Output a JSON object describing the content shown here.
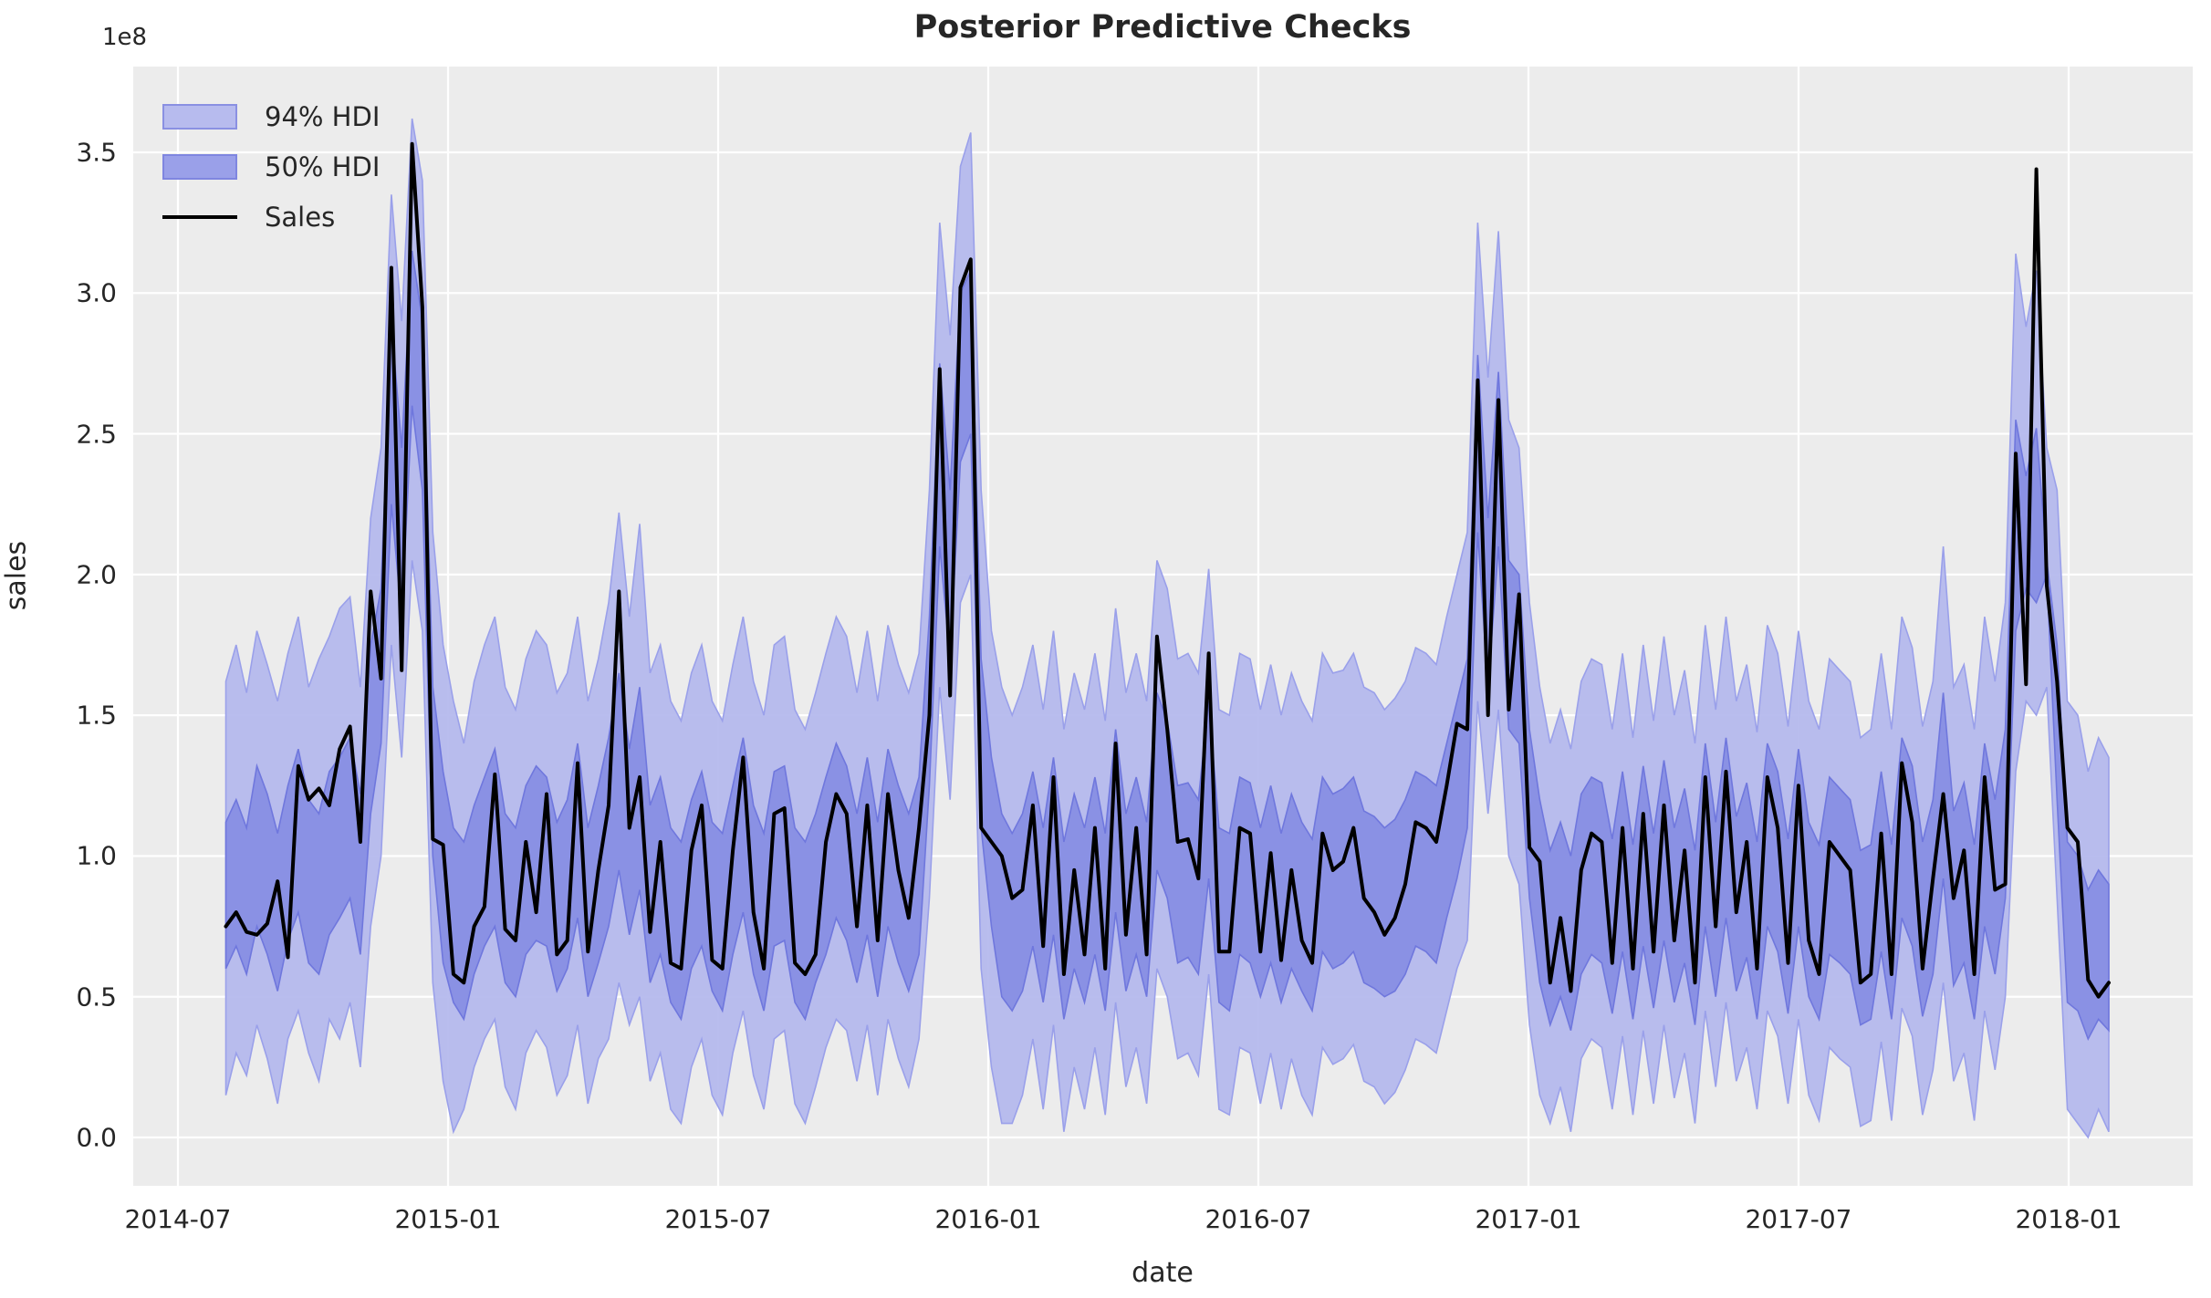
{
  "figure": {
    "title": "Posterior Predictive Checks",
    "offset_label": "1e8"
  },
  "axes": {
    "x_label": "date",
    "y_label": "sales",
    "x_ticks": [
      {
        "label": "2014-07",
        "month": 0
      },
      {
        "label": "2015-01",
        "month": 6
      },
      {
        "label": "2015-07",
        "month": 12
      },
      {
        "label": "2016-01",
        "month": 18
      },
      {
        "label": "2016-07",
        "month": 24
      },
      {
        "label": "2017-01",
        "month": 30
      },
      {
        "label": "2017-07",
        "month": 36
      },
      {
        "label": "2018-01",
        "month": 42
      }
    ],
    "y_ticks": [
      {
        "label": "0.0",
        "value": 0.0
      },
      {
        "label": "0.5",
        "value": 0.5
      },
      {
        "label": "1.0",
        "value": 1.0
      },
      {
        "label": "1.5",
        "value": 1.5
      },
      {
        "label": "2.0",
        "value": 2.0
      },
      {
        "label": "2.5",
        "value": 2.5
      },
      {
        "label": "3.0",
        "value": 3.0
      },
      {
        "label": "3.5",
        "value": 3.5
      }
    ]
  },
  "legend": [
    {
      "label": "94% HDI",
      "type": "patch",
      "fill": "#b7bbee",
      "border": "#8a90e2"
    },
    {
      "label": "50% HDI",
      "type": "patch",
      "fill": "#9aa0e9",
      "border": "#7f86e0"
    },
    {
      "label": "Sales",
      "type": "line",
      "color": "#000000"
    }
  ],
  "colors": {
    "plot_bg": "#ececec",
    "gridline": "#ffffff",
    "hdi94_fill": "#b4b8ed",
    "hdi94_edge": "#9aa0ea",
    "hdi50_fill": "#878ee4",
    "hdi50_edge": "#6f77dd",
    "sales_line": "#000000"
  },
  "chart_data": {
    "type": "line",
    "description": "Weekly sales (black) with 94% and 50% posterior-predictive HDI bands, units of 1e8",
    "x_start": "2014-08-03",
    "x_step_days": 7,
    "y_units": "1e8",
    "ylim": [
      -0.17,
      3.8
    ],
    "grid": true,
    "legend_position": "upper left",
    "series": [
      {
        "name": "sales",
        "values": [
          0.75,
          0.8,
          0.73,
          0.72,
          0.76,
          0.91,
          0.64,
          1.32,
          1.2,
          1.24,
          1.18,
          1.38,
          1.46,
          1.05,
          1.94,
          1.63,
          3.09,
          1.66,
          3.53,
          2.95,
          1.06,
          1.04,
          0.58,
          0.55,
          0.75,
          0.82,
          1.29,
          0.74,
          0.7,
          1.05,
          0.8,
          1.22,
          0.65,
          0.7,
          1.33,
          0.66,
          0.95,
          1.18,
          1.94,
          1.1,
          1.28,
          0.73,
          1.05,
          0.62,
          0.6,
          1.02,
          1.18,
          0.63,
          0.6,
          1.02,
          1.35,
          0.8,
          0.6,
          1.15,
          1.17,
          0.62,
          0.58,
          0.65,
          1.05,
          1.22,
          1.15,
          0.75,
          1.18,
          0.7,
          1.22,
          0.95,
          0.78,
          1.1,
          1.5,
          2.73,
          1.57,
          3.02,
          3.12,
          1.1,
          1.05,
          1.0,
          0.85,
          0.88,
          1.18,
          0.68,
          1.28,
          0.58,
          0.95,
          0.65,
          1.1,
          0.6,
          1.4,
          0.72,
          1.1,
          0.65,
          1.78,
          1.45,
          1.05,
          1.06,
          0.92,
          1.72,
          0.66,
          0.66,
          1.1,
          1.08,
          0.66,
          1.01,
          0.63,
          0.95,
          0.7,
          0.62,
          1.08,
          0.95,
          0.98,
          1.1,
          0.85,
          0.8,
          0.72,
          0.78,
          0.9,
          1.12,
          1.1,
          1.05,
          1.25,
          1.47,
          1.45,
          2.69,
          1.5,
          2.62,
          1.52,
          1.93,
          1.03,
          0.98,
          0.55,
          0.78,
          0.52,
          0.95,
          1.08,
          1.05,
          0.62,
          1.1,
          0.6,
          1.15,
          0.66,
          1.18,
          0.7,
          1.02,
          0.55,
          1.28,
          0.75,
          1.3,
          0.8,
          1.05,
          0.6,
          1.28,
          1.1,
          0.62,
          1.25,
          0.7,
          0.58,
          1.05,
          1.0,
          0.95,
          0.55,
          0.58,
          1.08,
          0.58,
          1.33,
          1.12,
          0.6,
          0.92,
          1.22,
          0.85,
          1.02,
          0.58,
          1.28,
          0.88,
          0.9,
          2.43,
          1.61,
          3.44,
          1.96,
          1.62,
          1.1,
          1.05,
          0.56,
          0.5,
          0.55
        ]
      },
      {
        "name": "hdi94_hi",
        "values": [
          1.62,
          1.75,
          1.58,
          1.8,
          1.68,
          1.55,
          1.72,
          1.85,
          1.6,
          1.7,
          1.78,
          1.88,
          1.92,
          1.6,
          2.2,
          2.45,
          3.35,
          2.9,
          3.62,
          3.4,
          2.15,
          1.75,
          1.55,
          1.4,
          1.62,
          1.75,
          1.85,
          1.6,
          1.52,
          1.7,
          1.8,
          1.75,
          1.58,
          1.65,
          1.85,
          1.55,
          1.7,
          1.9,
          2.22,
          1.85,
          2.18,
          1.65,
          1.75,
          1.55,
          1.48,
          1.65,
          1.75,
          1.55,
          1.48,
          1.68,
          1.85,
          1.62,
          1.5,
          1.75,
          1.78,
          1.52,
          1.45,
          1.58,
          1.72,
          1.85,
          1.78,
          1.58,
          1.8,
          1.55,
          1.82,
          1.68,
          1.58,
          1.72,
          2.3,
          3.25,
          2.85,
          3.45,
          3.57,
          2.3,
          1.8,
          1.6,
          1.5,
          1.6,
          1.75,
          1.52,
          1.8,
          1.45,
          1.65,
          1.52,
          1.72,
          1.48,
          1.88,
          1.58,
          1.72,
          1.55,
          2.05,
          1.95,
          1.7,
          1.72,
          1.65,
          2.02,
          1.52,
          1.5,
          1.72,
          1.7,
          1.52,
          1.68,
          1.5,
          1.65,
          1.55,
          1.48,
          1.72,
          1.65,
          1.66,
          1.72,
          1.6,
          1.58,
          1.52,
          1.56,
          1.62,
          1.74,
          1.72,
          1.68,
          1.85,
          2.0,
          2.15,
          3.25,
          2.7,
          3.22,
          2.55,
          2.45,
          1.9,
          1.6,
          1.4,
          1.52,
          1.38,
          1.62,
          1.7,
          1.68,
          1.45,
          1.72,
          1.42,
          1.75,
          1.48,
          1.78,
          1.5,
          1.66,
          1.4,
          1.82,
          1.52,
          1.85,
          1.55,
          1.68,
          1.44,
          1.82,
          1.72,
          1.46,
          1.8,
          1.55,
          1.45,
          1.7,
          1.66,
          1.62,
          1.42,
          1.45,
          1.72,
          1.45,
          1.85,
          1.74,
          1.46,
          1.62,
          2.1,
          1.6,
          1.68,
          1.45,
          1.85,
          1.62,
          1.9,
          3.14,
          2.88,
          3.08,
          2.45,
          2.3,
          1.55,
          1.5,
          1.3,
          1.42,
          1.35
        ]
      },
      {
        "name": "hdi94_lo",
        "values": [
          0.15,
          0.3,
          0.22,
          0.4,
          0.28,
          0.12,
          0.35,
          0.45,
          0.3,
          0.2,
          0.42,
          0.35,
          0.48,
          0.25,
          0.75,
          1.0,
          1.75,
          1.35,
          2.05,
          1.8,
          0.55,
          0.2,
          0.02,
          0.1,
          0.25,
          0.35,
          0.42,
          0.18,
          0.1,
          0.3,
          0.38,
          0.32,
          0.15,
          0.22,
          0.4,
          0.12,
          0.28,
          0.35,
          0.55,
          0.4,
          0.5,
          0.2,
          0.3,
          0.1,
          0.05,
          0.25,
          0.35,
          0.15,
          0.08,
          0.3,
          0.45,
          0.22,
          0.1,
          0.35,
          0.38,
          0.12,
          0.05,
          0.18,
          0.32,
          0.42,
          0.38,
          0.2,
          0.4,
          0.15,
          0.42,
          0.28,
          0.18,
          0.35,
          0.85,
          1.6,
          1.2,
          1.9,
          2.0,
          0.6,
          0.25,
          0.05,
          0.05,
          0.15,
          0.35,
          0.1,
          0.4,
          0.02,
          0.25,
          0.1,
          0.32,
          0.08,
          0.48,
          0.18,
          0.32,
          0.12,
          0.6,
          0.5,
          0.28,
          0.3,
          0.22,
          0.58,
          0.1,
          0.08,
          0.32,
          0.3,
          0.12,
          0.3,
          0.1,
          0.28,
          0.15,
          0.08,
          0.32,
          0.26,
          0.28,
          0.33,
          0.2,
          0.18,
          0.12,
          0.16,
          0.24,
          0.35,
          0.33,
          0.3,
          0.45,
          0.6,
          0.7,
          1.55,
          1.15,
          1.52,
          1.0,
          0.9,
          0.4,
          0.15,
          0.05,
          0.18,
          0.02,
          0.28,
          0.35,
          0.32,
          0.1,
          0.36,
          0.08,
          0.38,
          0.12,
          0.4,
          0.14,
          0.3,
          0.05,
          0.45,
          0.18,
          0.48,
          0.2,
          0.32,
          0.1,
          0.45,
          0.36,
          0.12,
          0.42,
          0.15,
          0.06,
          0.32,
          0.28,
          0.25,
          0.04,
          0.06,
          0.34,
          0.06,
          0.46,
          0.36,
          0.08,
          0.24,
          0.55,
          0.2,
          0.3,
          0.06,
          0.45,
          0.24,
          0.5,
          1.3,
          1.55,
          1.5,
          1.6,
          0.85,
          0.1,
          0.05,
          0.0,
          0.1,
          0.02
        ]
      },
      {
        "name": "hdi50_hi",
        "values": [
          1.12,
          1.2,
          1.1,
          1.32,
          1.22,
          1.08,
          1.25,
          1.38,
          1.2,
          1.15,
          1.3,
          1.35,
          1.42,
          1.22,
          1.75,
          1.95,
          2.9,
          2.45,
          3.15,
          2.9,
          1.6,
          1.3,
          1.1,
          1.05,
          1.18,
          1.28,
          1.38,
          1.15,
          1.1,
          1.25,
          1.32,
          1.28,
          1.12,
          1.2,
          1.4,
          1.1,
          1.25,
          1.42,
          1.65,
          1.38,
          1.6,
          1.18,
          1.28,
          1.1,
          1.05,
          1.2,
          1.3,
          1.12,
          1.08,
          1.25,
          1.42,
          1.18,
          1.08,
          1.3,
          1.32,
          1.1,
          1.05,
          1.15,
          1.28,
          1.4,
          1.32,
          1.15,
          1.35,
          1.12,
          1.38,
          1.25,
          1.15,
          1.28,
          1.85,
          2.75,
          2.3,
          3.0,
          3.08,
          1.7,
          1.35,
          1.15,
          1.08,
          1.15,
          1.3,
          1.1,
          1.35,
          1.05,
          1.22,
          1.1,
          1.28,
          1.08,
          1.45,
          1.15,
          1.28,
          1.12,
          1.58,
          1.48,
          1.25,
          1.26,
          1.2,
          1.55,
          1.1,
          1.08,
          1.28,
          1.26,
          1.1,
          1.25,
          1.08,
          1.22,
          1.12,
          1.06,
          1.28,
          1.22,
          1.24,
          1.28,
          1.16,
          1.14,
          1.1,
          1.13,
          1.2,
          1.3,
          1.28,
          1.25,
          1.4,
          1.55,
          1.7,
          2.78,
          2.2,
          2.72,
          2.05,
          2.0,
          1.45,
          1.2,
          1.02,
          1.12,
          1.0,
          1.22,
          1.28,
          1.26,
          1.06,
          1.3,
          1.04,
          1.32,
          1.08,
          1.34,
          1.1,
          1.24,
          1.02,
          1.4,
          1.12,
          1.42,
          1.14,
          1.26,
          1.05,
          1.4,
          1.3,
          1.06,
          1.38,
          1.12,
          1.04,
          1.28,
          1.24,
          1.2,
          1.02,
          1.04,
          1.3,
          1.04,
          1.42,
          1.32,
          1.05,
          1.2,
          1.58,
          1.16,
          1.26,
          1.04,
          1.4,
          1.2,
          1.45,
          2.55,
          2.35,
          2.52,
          2.05,
          1.75,
          1.05,
          1.0,
          0.88,
          0.95,
          0.9
        ]
      },
      {
        "name": "hdi50_lo",
        "values": [
          0.6,
          0.68,
          0.58,
          0.75,
          0.65,
          0.52,
          0.7,
          0.8,
          0.62,
          0.58,
          0.72,
          0.78,
          0.85,
          0.65,
          1.15,
          1.4,
          2.25,
          1.85,
          2.6,
          2.3,
          1.0,
          0.62,
          0.48,
          0.42,
          0.58,
          0.68,
          0.75,
          0.55,
          0.5,
          0.65,
          0.7,
          0.68,
          0.52,
          0.6,
          0.78,
          0.5,
          0.62,
          0.75,
          0.95,
          0.72,
          0.88,
          0.55,
          0.65,
          0.48,
          0.42,
          0.6,
          0.68,
          0.52,
          0.45,
          0.65,
          0.8,
          0.58,
          0.45,
          0.68,
          0.7,
          0.48,
          0.42,
          0.55,
          0.65,
          0.78,
          0.7,
          0.55,
          0.72,
          0.5,
          0.75,
          0.62,
          0.52,
          0.65,
          1.25,
          2.1,
          1.7,
          2.4,
          2.5,
          1.1,
          0.75,
          0.5,
          0.45,
          0.52,
          0.68,
          0.48,
          0.72,
          0.42,
          0.6,
          0.48,
          0.65,
          0.45,
          0.8,
          0.52,
          0.65,
          0.5,
          0.95,
          0.85,
          0.62,
          0.64,
          0.58,
          0.92,
          0.48,
          0.45,
          0.65,
          0.62,
          0.5,
          0.62,
          0.48,
          0.6,
          0.52,
          0.45,
          0.66,
          0.6,
          0.62,
          0.66,
          0.55,
          0.53,
          0.5,
          0.52,
          0.58,
          0.68,
          0.66,
          0.62,
          0.78,
          0.92,
          1.1,
          2.15,
          1.6,
          2.1,
          1.45,
          1.4,
          0.85,
          0.55,
          0.4,
          0.5,
          0.38,
          0.58,
          0.65,
          0.62,
          0.44,
          0.66,
          0.42,
          0.68,
          0.46,
          0.7,
          0.48,
          0.62,
          0.4,
          0.75,
          0.5,
          0.78,
          0.52,
          0.64,
          0.42,
          0.75,
          0.66,
          0.44,
          0.75,
          0.5,
          0.42,
          0.65,
          0.62,
          0.58,
          0.4,
          0.42,
          0.66,
          0.42,
          0.78,
          0.68,
          0.43,
          0.58,
          0.92,
          0.54,
          0.62,
          0.42,
          0.75,
          0.58,
          0.85,
          1.8,
          1.95,
          1.9,
          2.0,
          1.2,
          0.48,
          0.45,
          0.35,
          0.42,
          0.38
        ]
      }
    ]
  }
}
